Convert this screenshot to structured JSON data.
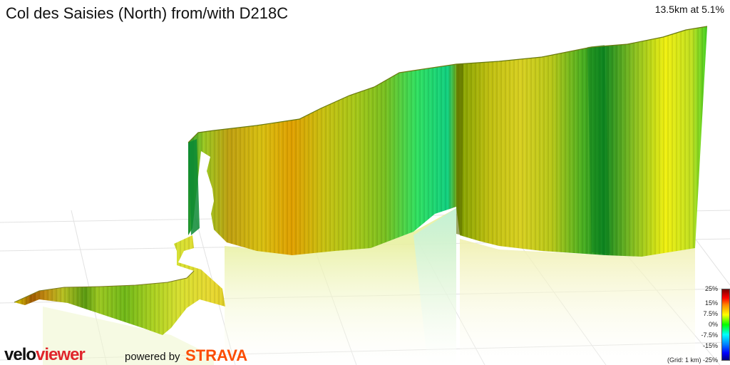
{
  "header": {
    "title": "Col des Saisies (North) from/with D218C",
    "summary": "13.5km at 5.1%"
  },
  "legend": {
    "labels": [
      "25%",
      "15%",
      "7.5%",
      "0%",
      "-7.5%",
      "-15%",
      "-25%"
    ],
    "grid_note": "(Grid: 1 km)"
  },
  "branding": {
    "velo": "velo",
    "viewer": "viewer",
    "powered_by": "powered by",
    "strava": "STRAVA"
  },
  "colors": {
    "brand_red": "#e0262c",
    "strava_orange": "#fc4c02",
    "gradient_low": "#00a000",
    "gradient_mid": "#ffff00",
    "gradient_high": "#c06000"
  }
}
